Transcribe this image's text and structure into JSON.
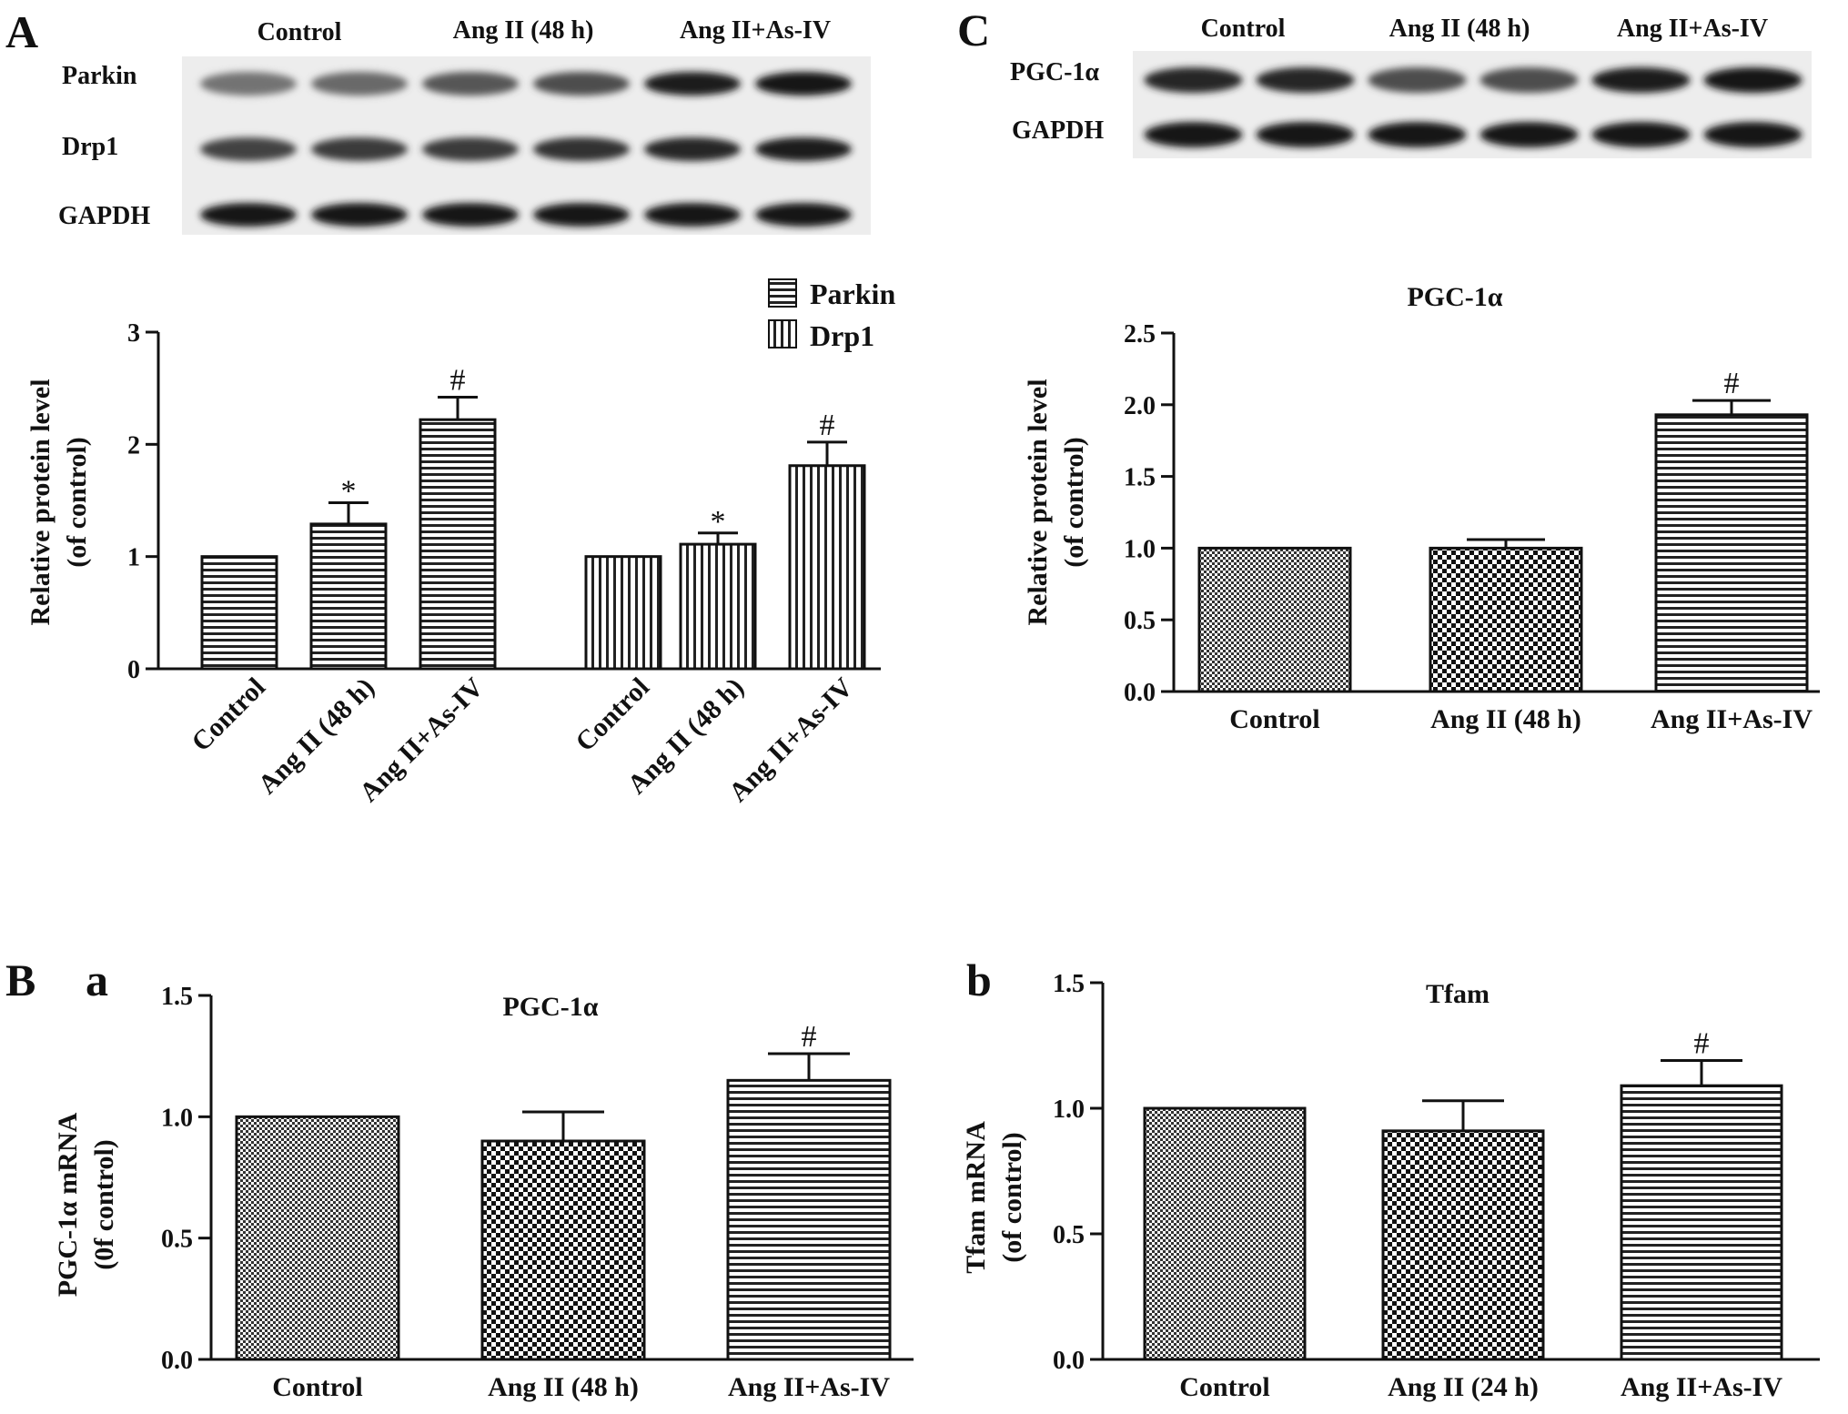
{
  "panels": {
    "A": "A",
    "B": "B",
    "Ba": "a",
    "Bb": "b",
    "C": "C"
  },
  "blots": {
    "A": {
      "groups": [
        "Control",
        "Ang II (48 h)",
        "Ang II+As-IV"
      ],
      "rows": [
        "Parkin",
        "Drp1",
        "GAPDH"
      ],
      "intensities": [
        [
          0.45,
          0.5,
          0.6,
          0.65,
          0.9,
          0.95
        ],
        [
          0.7,
          0.75,
          0.75,
          0.8,
          0.85,
          0.9
        ],
        [
          0.95,
          0.95,
          0.95,
          0.95,
          0.95,
          0.95
        ]
      ]
    },
    "C": {
      "groups": [
        "Control",
        "Ang II (48 h)",
        "Ang II+As-IV"
      ],
      "rows": [
        "PGC-1α",
        "GAPDH"
      ],
      "intensities": [
        [
          0.85,
          0.85,
          0.65,
          0.65,
          0.9,
          0.95
        ],
        [
          0.95,
          0.95,
          0.95,
          0.95,
          0.95,
          0.95
        ]
      ]
    }
  },
  "chart_data": [
    {
      "id": "A",
      "type": "bar",
      "title": "",
      "ylabel": [
        "Relative protein level",
        "(of control)"
      ],
      "ylim": [
        0,
        3
      ],
      "yticks": [
        "0",
        "1",
        "2",
        "3"
      ],
      "ytick_values": [
        0,
        1,
        2,
        3
      ],
      "categories": [
        "Control",
        "Ang II (48 h)",
        "Ang II+As-IV"
      ],
      "legend": {
        "placement": "top-right",
        "entries": [
          "Parkin",
          "Drp1"
        ]
      },
      "series": [
        {
          "name": "Parkin",
          "pattern": "hlines",
          "values": [
            1.0,
            1.29,
            2.22
          ],
          "errors": [
            0,
            0.19,
            0.2
          ],
          "marks": [
            "",
            "*",
            "#"
          ]
        },
        {
          "name": "Drp1",
          "pattern": "vlines",
          "values": [
            1.0,
            1.11,
            1.81
          ],
          "errors": [
            0,
            0.1,
            0.21
          ],
          "marks": [
            "",
            "*",
            "#"
          ]
        }
      ]
    },
    {
      "id": "C",
      "type": "bar",
      "title": "PGC-1α",
      "ylabel": [
        "Relative protein level",
        "(of control)"
      ],
      "ylim": [
        0,
        2.5
      ],
      "yticks": [
        "0.0",
        "0.5",
        "1.0",
        "1.5",
        "2.0",
        "2.5"
      ],
      "ytick_values": [
        0,
        0.5,
        1.0,
        1.5,
        2.0,
        2.5
      ],
      "categories": [
        "Control",
        "Ang II (48 h)",
        "Ang II+As-IV"
      ],
      "values": [
        1.0,
        1.0,
        1.93
      ],
      "errors": [
        0,
        0.06,
        0.1
      ],
      "marks": [
        "",
        "",
        "#"
      ],
      "patterns": [
        "check",
        "checkbig",
        "hlines"
      ]
    },
    {
      "id": "Ba",
      "type": "bar",
      "title": "PGC-1α",
      "ylabel": [
        "PGC-1α  mRNA",
        "(0f control)"
      ],
      "ylim": [
        0,
        1.5
      ],
      "yticks": [
        "0.0",
        "0.5",
        "1.0",
        "1.5"
      ],
      "ytick_values": [
        0,
        0.5,
        1.0,
        1.5
      ],
      "categories": [
        "Control",
        "Ang II (48 h)",
        "Ang II+As-IV"
      ],
      "values": [
        1.0,
        0.9,
        1.15
      ],
      "errors": [
        0,
        0.12,
        0.11
      ],
      "marks": [
        "",
        "",
        "#"
      ],
      "patterns": [
        "check",
        "checkbig",
        "hlines"
      ]
    },
    {
      "id": "Bb",
      "type": "bar",
      "title": "Tfam",
      "ylabel": [
        "Tfam mRNA",
        "(of control)"
      ],
      "ylim": [
        0,
        1.5
      ],
      "yticks": [
        "0.0",
        "0.5",
        "1.0",
        "1.5"
      ],
      "ytick_values": [
        0,
        0.5,
        1.0,
        1.5
      ],
      "categories": [
        "Control",
        "Ang II (24 h)",
        "Ang II+As-IV"
      ],
      "values": [
        1.0,
        0.91,
        1.09
      ],
      "errors": [
        0,
        0.12,
        0.1
      ],
      "marks": [
        "",
        "",
        "#"
      ],
      "patterns": [
        "check",
        "checkbig",
        "hlines"
      ]
    }
  ]
}
